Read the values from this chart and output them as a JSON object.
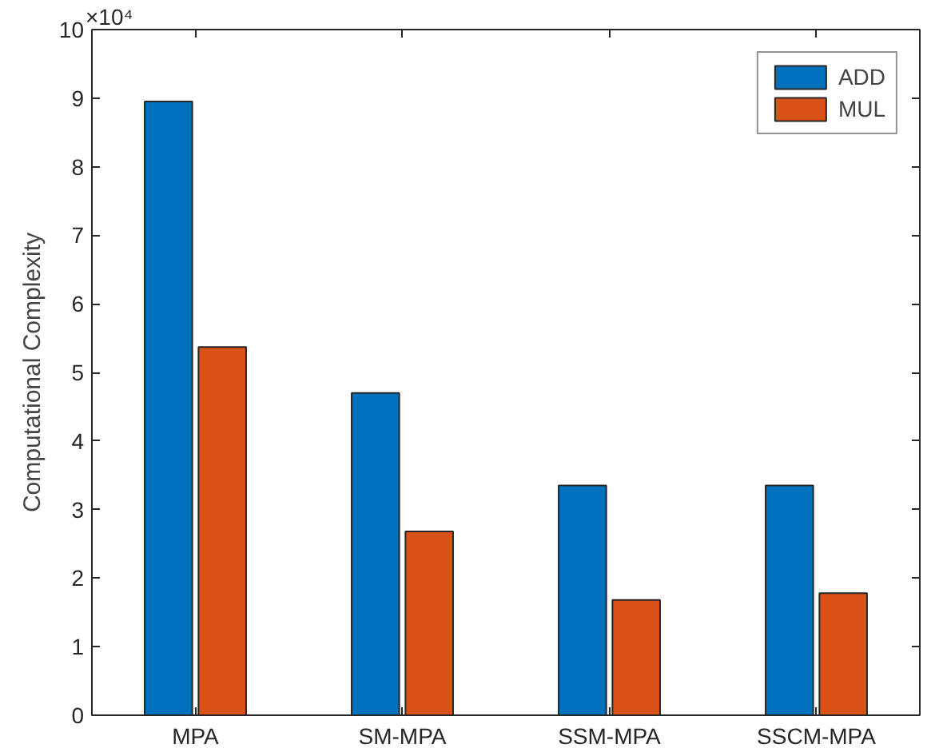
{
  "chart_data": {
    "type": "bar",
    "ylabel": "Computational Complexity",
    "categories": [
      "MPA",
      "SM-MPA",
      "SSM-MPA",
      "SSCM-MPA"
    ],
    "series": [
      {
        "name": "ADD",
        "color": "#0072bd",
        "values": [
          8.95,
          4.7,
          3.35,
          3.35
        ]
      },
      {
        "name": "MUL",
        "color": "#d95319",
        "values": [
          5.37,
          2.68,
          1.68,
          1.78
        ]
      }
    ],
    "ylim": [
      0,
      10
    ],
    "yticks": [
      0,
      1,
      2,
      3,
      4,
      5,
      6,
      7,
      8,
      9,
      10
    ],
    "annotations": [
      "×10⁴"
    ],
    "grid": false,
    "legend": "top right"
  }
}
